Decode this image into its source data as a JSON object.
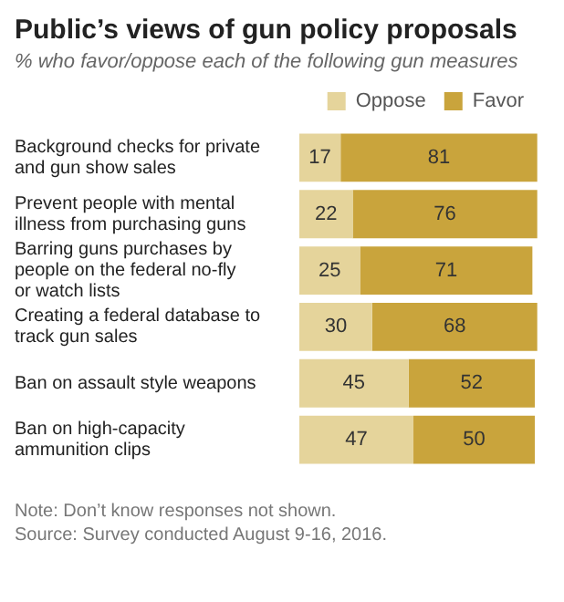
{
  "chart_data": {
    "type": "bar",
    "orientation": "horizontal",
    "stacked": true,
    "title": "Public’s views of gun policy proposals",
    "subtitle": "% who favor/oppose each of the following gun measures",
    "categories": [
      "Background checks for private and gun show sales",
      "Prevent people with mental illness from purchasing guns",
      "Barring guns purchases by people on the federal no-fly or watch lists",
      "Creating a federal database to track gun sales",
      "Ban on assault style weapons",
      "Ban on high-capacity ammunition clips"
    ],
    "series": [
      {
        "name": "Oppose",
        "color": "#e5d49b",
        "values": [
          17,
          22,
          25,
          30,
          45,
          47
        ]
      },
      {
        "name": "Favor",
        "color": "#c9a43c",
        "values": [
          81,
          76,
          71,
          68,
          52,
          50
        ]
      }
    ],
    "data_labels": true,
    "legend": "top right",
    "grid": false,
    "tick_labels": "y",
    "annotations": [
      "Note: Don’t know responses not shown.",
      "Source: Survey conducted August 9-16, 2016."
    ]
  }
}
